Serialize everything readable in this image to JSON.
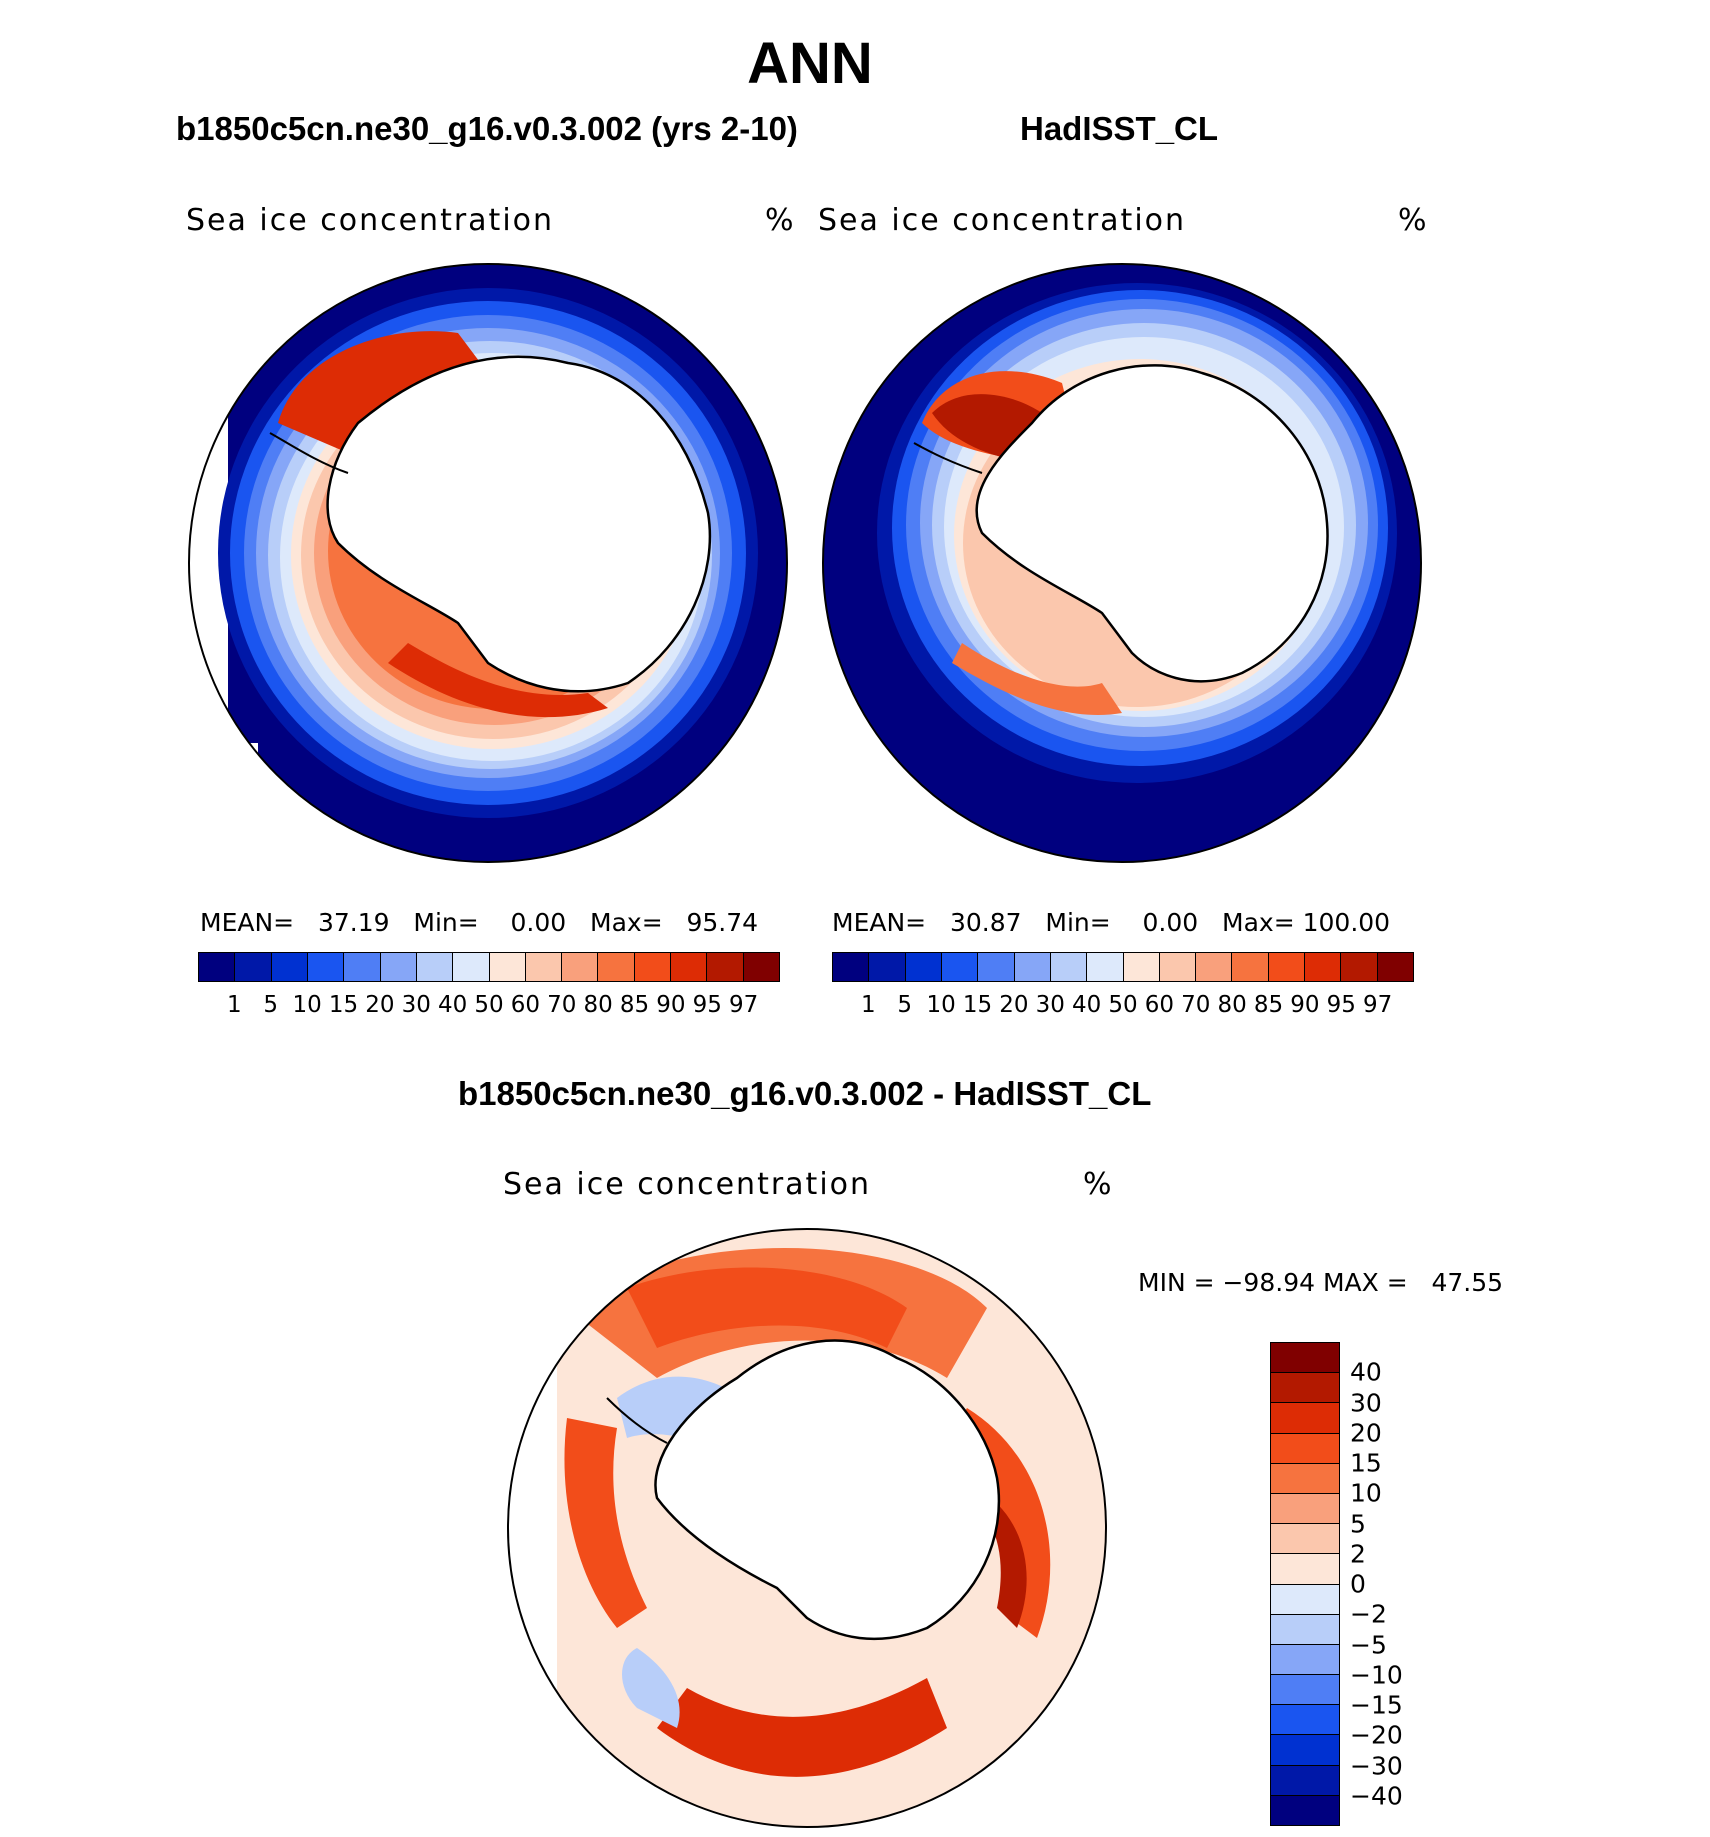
{
  "main_title": "ANN",
  "panels": [
    {
      "title": "b1850c5cn.ne30_g16.v0.3.002 (yrs 2-10)",
      "field": "Sea ice concentration",
      "unit": "%",
      "mean_label": "MEAN=",
      "mean": "37.19",
      "min_label": "Min=",
      "min": "0.00",
      "max_label": "Max=",
      "max": "95.74"
    },
    {
      "title": "HadISST_CL",
      "field": "Sea ice concentration",
      "unit": "%",
      "mean_label": "MEAN=",
      "mean": "30.87",
      "min_label": "Min=",
      "min": "0.00",
      "max_label": "Max=",
      "max": "100.00"
    }
  ],
  "diff_panel": {
    "title": "b1850c5cn.ne30_g16.v0.3.002 - HadISST_CL",
    "field": "Sea ice concentration",
    "unit": "%",
    "minmax": "MIN = −98.94 MAX =   47.55"
  },
  "colorbar_top": {
    "ticks": [
      "1",
      "5",
      "10",
      "15",
      "20",
      "30",
      "40",
      "50",
      "60",
      "70",
      "80",
      "85",
      "90",
      "95",
      "97"
    ],
    "colors": [
      "#00007f",
      "#0018a8",
      "#0031d1",
      "#1a55f0",
      "#4f7ef5",
      "#86a6f7",
      "#b8cef9",
      "#dde9fb",
      "#fde6d8",
      "#fbc7ad",
      "#f9a07c",
      "#f6733f",
      "#f24d1a",
      "#dd2c05",
      "#b31900",
      "#800000"
    ]
  },
  "colorbar_diff": {
    "ticks": [
      "40",
      "30",
      "20",
      "15",
      "10",
      "5",
      "2",
      "0",
      "−2",
      "−5",
      "−10",
      "−15",
      "−20",
      "−30",
      "−40"
    ],
    "colors": [
      "#800000",
      "#b31900",
      "#dd2c05",
      "#f24d1a",
      "#f6733f",
      "#f9a07c",
      "#fbc7ad",
      "#fde6d8",
      "#dde9fb",
      "#b8cef9",
      "#86a6f7",
      "#4f7ef5",
      "#1a55f0",
      "#0031d1",
      "#0018a8",
      "#00007f"
    ]
  }
}
